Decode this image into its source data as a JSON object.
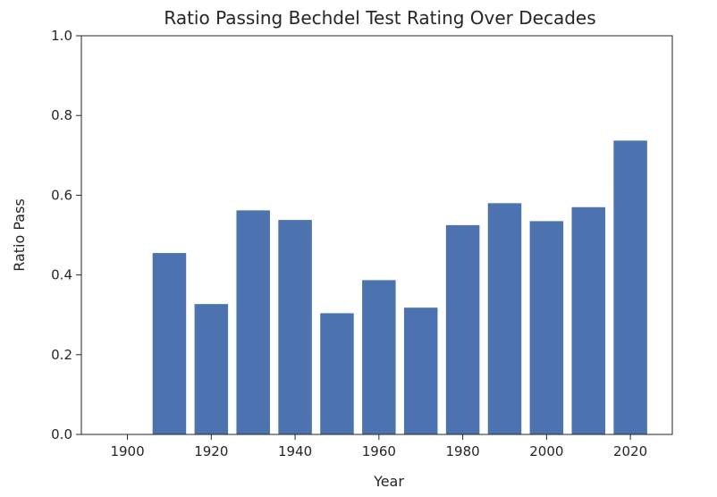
{
  "chart_data": {
    "type": "bar",
    "title": "Ratio Passing Bechdel Test Rating Over Decades",
    "xlabel": "Year",
    "ylabel": "Ratio Pass",
    "x": [
      1900,
      1910,
      1920,
      1930,
      1940,
      1950,
      1960,
      1970,
      1980,
      1990,
      2000,
      2010,
      2020
    ],
    "values": [
      0.0,
      0.455,
      0.327,
      0.562,
      0.538,
      0.304,
      0.387,
      0.318,
      0.525,
      0.58,
      0.535,
      0.57,
      0.737
    ],
    "bar_width_years": 8,
    "xlim": [
      1889,
      2030
    ],
    "ylim": [
      0,
      1.0
    ],
    "xticks": [
      1900,
      1920,
      1940,
      1960,
      1980,
      2000,
      2020
    ],
    "xtick_labels": [
      "1900",
      "1920",
      "1940",
      "1960",
      "1980",
      "2000",
      "2020"
    ],
    "yticks": [
      0.0,
      0.2,
      0.4,
      0.6,
      0.8,
      1.0
    ],
    "ytick_labels": [
      "0.0",
      "0.2",
      "0.4",
      "0.6",
      "0.8",
      "1.0"
    ],
    "bar_color": "#4c72b0",
    "grid": false,
    "legend": "none"
  }
}
